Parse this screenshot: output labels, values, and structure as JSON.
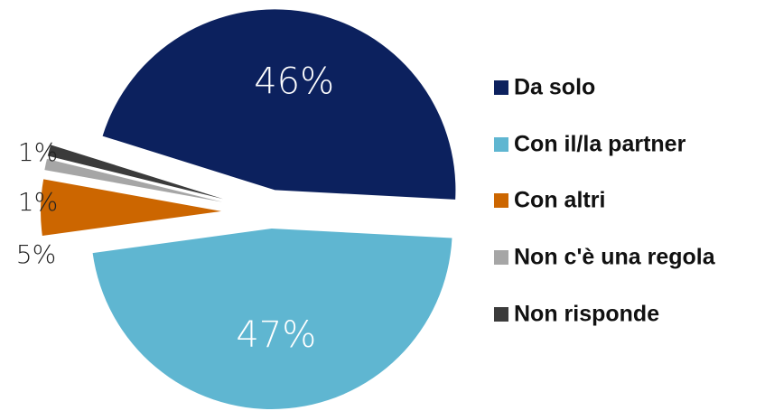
{
  "chart_data": {
    "type": "pie",
    "categories": [
      "Da solo",
      "Con il/la partner",
      "Con altri",
      "Non c'è una regola",
      "Non risponde"
    ],
    "values": [
      46,
      47,
      5,
      1,
      1
    ],
    "value_labels": [
      "46%",
      "47%",
      "5%",
      "1%",
      "1%"
    ],
    "colors": [
      "#0c215e",
      "#5fb6d1",
      "#cc6600",
      "#a6a6a6",
      "#3b3b3b"
    ],
    "legend": "right"
  }
}
